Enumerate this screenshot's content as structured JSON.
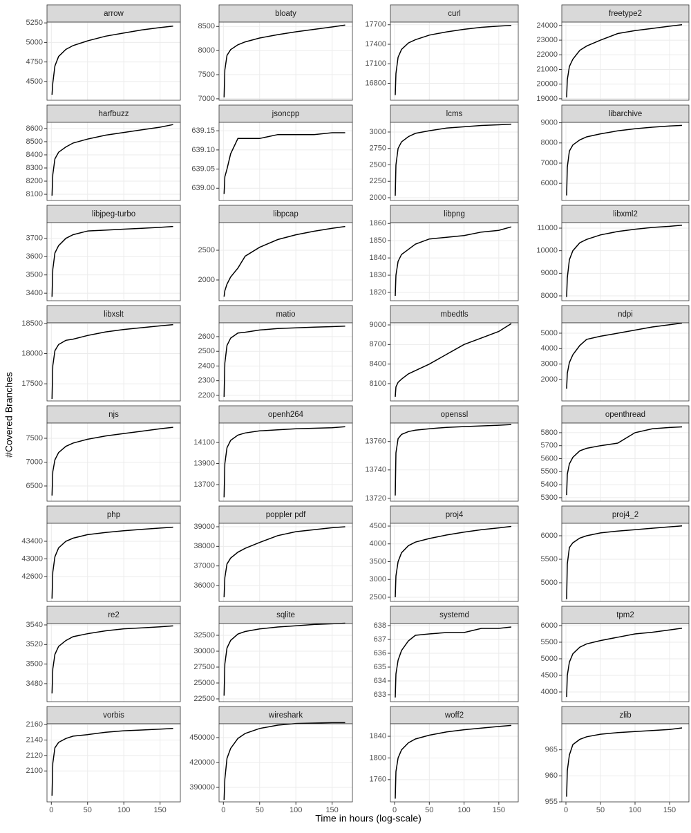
{
  "chart_data": {
    "type": "line",
    "x_label": "Time in hours (log-scale)",
    "y_label": "#Covered Branches",
    "xlim": [
      -6,
      178
    ],
    "xticks": [
      0,
      50,
      100,
      150
    ],
    "grid": true,
    "color": "#000000",
    "x": [
      1,
      2,
      5,
      10,
      20,
      30,
      50,
      75,
      100,
      125,
      150,
      168
    ],
    "panels": [
      {
        "title": "arrow",
        "ylim": [
          4260,
          5260
        ],
        "yticks": [
          4500,
          4750,
          5000,
          5250
        ],
        "values": [
          4330,
          4480,
          4700,
          4820,
          4910,
          4960,
          5020,
          5080,
          5120,
          5160,
          5190,
          5210
        ]
      },
      {
        "title": "bloaty",
        "ylim": [
          6970,
          8590
        ],
        "yticks": [
          7000,
          7500,
          8000,
          8500
        ],
        "values": [
          7030,
          7600,
          7900,
          8020,
          8120,
          8180,
          8260,
          8330,
          8390,
          8440,
          8490,
          8530
        ]
      },
      {
        "title": "curl",
        "ylim": [
          16540,
          17740
        ],
        "yticks": [
          16800,
          17100,
          17400,
          17700
        ],
        "values": [
          16620,
          16950,
          17200,
          17320,
          17420,
          17470,
          17540,
          17590,
          17630,
          17660,
          17680,
          17690
        ]
      },
      {
        "title": "freetype2",
        "ylim": [
          18900,
          24230
        ],
        "yticks": [
          19000,
          20000,
          21000,
          22000,
          23000,
          24000
        ],
        "values": [
          19100,
          20300,
          21200,
          21700,
          22300,
          22600,
          23000,
          23450,
          23650,
          23800,
          23950,
          24050
        ]
      },
      {
        "title": "harfbuzz",
        "ylim": [
          8053,
          8647
        ],
        "yticks": [
          8100,
          8200,
          8300,
          8400,
          8500,
          8600
        ],
        "values": [
          8090,
          8250,
          8370,
          8420,
          8460,
          8490,
          8520,
          8550,
          8570,
          8590,
          8610,
          8630
        ]
      },
      {
        "title": "jsoncpp",
        "ylim": [
          638.968,
          639.172
        ],
        "yticks": [
          {
            "value": 639,
            "label": "639.00"
          },
          639.05,
          {
            "value": 639.1,
            "label": "639.10"
          },
          639.15
        ],
        "values": [
          638.985,
          639.03,
          639.05,
          639.09,
          639.13,
          639.13,
          639.13,
          639.14,
          639.14,
          639.14,
          639.145,
          639.145
        ]
      },
      {
        "title": "lcms",
        "ylim": [
          1958,
          3147
        ],
        "yticks": [
          2000,
          2250,
          2500,
          2750,
          3000
        ],
        "values": [
          2030,
          2500,
          2750,
          2850,
          2930,
          2980,
          3020,
          3060,
          3080,
          3100,
          3110,
          3120
        ]
      },
      {
        "title": "libarchive",
        "ylim": [
          5150,
          9020
        ],
        "yticks": [
          6000,
          7000,
          8000,
          9000
        ],
        "values": [
          5400,
          6800,
          7600,
          7900,
          8150,
          8300,
          8450,
          8600,
          8700,
          8780,
          8840,
          8870
        ]
      },
      {
        "title": "libjpeg-turbo",
        "ylim": [
          3359,
          3786
        ],
        "yticks": [
          3400,
          3500,
          3600,
          3700
        ],
        "values": [
          3380,
          3530,
          3620,
          3660,
          3700,
          3720,
          3740,
          3745,
          3750,
          3755,
          3760,
          3765
        ]
      },
      {
        "title": "libpcap",
        "ylim": [
          1651,
          2965
        ],
        "yticks": [
          2000,
          2500
        ],
        "values": [
          1720,
          1820,
          1930,
          2050,
          2200,
          2400,
          2550,
          2680,
          2760,
          2820,
          2870,
          2900
        ]
      },
      {
        "title": "libpng",
        "ylim": [
          1815.2,
          1860.5
        ],
        "yticks": [
          1820,
          1830,
          1840,
          1850,
          1860
        ],
        "values": [
          1818,
          1830,
          1838,
          1842,
          1845,
          1848,
          1851,
          1852,
          1853,
          1855,
          1856,
          1858
        ]
      },
      {
        "title": "libxml2",
        "ylim": [
          7786,
          11245
        ],
        "yticks": [
          8000,
          9000,
          10000,
          11000
        ],
        "values": [
          7950,
          8800,
          9600,
          10000,
          10350,
          10500,
          10700,
          10850,
          10950,
          11030,
          11080,
          11130
        ]
      },
      {
        "title": "libxslt",
        "ylim": [
          17216,
          18510
        ],
        "yticks": [
          17500,
          18000,
          18500
        ],
        "values": [
          17250,
          17800,
          18050,
          18150,
          18220,
          18240,
          18300,
          18360,
          18400,
          18430,
          18460,
          18480
        ]
      },
      {
        "title": "matio",
        "ylim": [
          2162,
          2694
        ],
        "yticks": [
          2200,
          2300,
          2400,
          2500,
          2600
        ],
        "values": [
          2190,
          2420,
          2540,
          2590,
          2625,
          2630,
          2645,
          2655,
          2660,
          2665,
          2668,
          2672
        ]
      },
      {
        "title": "mbedtls",
        "ylim": [
          7835,
          9032
        ],
        "yticks": [
          8100,
          8400,
          8700,
          9000
        ],
        "values": [
          7900,
          8050,
          8120,
          8170,
          8250,
          8300,
          8400,
          8550,
          8700,
          8800,
          8900,
          9020
        ]
      },
      {
        "title": "ndpi",
        "ylim": [
          610,
          5670
        ],
        "yticks": [
          2000,
          3000,
          4000,
          5000
        ],
        "values": [
          1400,
          2400,
          3100,
          3600,
          4200,
          4600,
          4800,
          5000,
          5200,
          5400,
          5550,
          5650
        ]
      },
      {
        "title": "njs",
        "ylim": [
          6181,
          7819
        ],
        "yticks": [
          6500,
          7000,
          7500
        ],
        "values": [
          6300,
          6800,
          7050,
          7200,
          7330,
          7400,
          7480,
          7550,
          7600,
          7650,
          7700,
          7730
        ]
      },
      {
        "title": "openh264",
        "ylim": [
          13543,
          14284
        ],
        "yticks": [
          13700,
          13900,
          14100
        ],
        "values": [
          13580,
          13900,
          14050,
          14120,
          14170,
          14190,
          14210,
          14220,
          14230,
          14235,
          14240,
          14250
        ]
      },
      {
        "title": "openssl",
        "ylim": [
          13718,
          13773
        ],
        "yticks": [
          13720,
          13740,
          13760
        ],
        "values": [
          13722,
          13752,
          13762,
          13765,
          13767,
          13768,
          13769,
          13770,
          13770.5,
          13771,
          13771.5,
          13772
        ]
      },
      {
        "title": "openthread",
        "ylim": [
          5273,
          5874
        ],
        "yticks": [
          5300,
          5400,
          5500,
          5600,
          5700,
          5800
        ],
        "values": [
          5320,
          5480,
          5560,
          5610,
          5660,
          5680,
          5700,
          5720,
          5800,
          5830,
          5840,
          5845
        ]
      },
      {
        "title": "php",
        "ylim": [
          42035,
          43808
        ],
        "yticks": [
          42600,
          43000,
          43400
        ],
        "values": [
          42100,
          42700,
          43050,
          43250,
          43400,
          43470,
          43550,
          43600,
          43640,
          43670,
          43700,
          43720
        ]
      },
      {
        "title": "poppler pdf",
        "ylim": [
          35187,
          39177
        ],
        "yticks": [
          36000,
          37000,
          38000,
          39000
        ],
        "values": [
          35400,
          36400,
          37100,
          37400,
          37700,
          37900,
          38200,
          38550,
          38750,
          38850,
          38950,
          39000
        ]
      },
      {
        "title": "proj4",
        "ylim": [
          2383,
          4578
        ],
        "yticks": [
          2500,
          3000,
          3500,
          4000,
          4500
        ],
        "values": [
          2500,
          3100,
          3500,
          3750,
          3950,
          4050,
          4150,
          4250,
          4330,
          4400,
          4450,
          4490
        ]
      },
      {
        "title": "proj4_2",
        "ylim": [
          4603,
          6265
        ],
        "yticks": [
          5000,
          5500,
          6000
        ],
        "values": [
          4650,
          5400,
          5750,
          5850,
          5950,
          6000,
          6060,
          6100,
          6130,
          6160,
          6190,
          6210
        ]
      },
      {
        "title": "re2",
        "ylim": [
          3461.6,
          3541.4
        ],
        "yticks": [
          3480,
          3500,
          3520,
          3540
        ],
        "values": [
          3470,
          3495,
          3510,
          3518,
          3524,
          3528,
          3531,
          3534,
          3536,
          3537,
          3538,
          3539
        ]
      },
      {
        "title": "sqlite",
        "ylim": [
          22065,
          34348
        ],
        "yticks": [
          22500,
          25000,
          27500,
          30000,
          32500
        ],
        "values": [
          23000,
          28000,
          30500,
          31700,
          32700,
          33100,
          33500,
          33800,
          34000,
          34200,
          34300,
          34400
        ]
      },
      {
        "title": "systemd",
        "ylim": [
          632.5,
          638.15
        ],
        "yticks": [
          633,
          634,
          635,
          636,
          637,
          638
        ],
        "values": [
          632.8,
          634.5,
          635.5,
          636.2,
          636.9,
          637.3,
          637.4,
          637.5,
          637.5,
          637.8,
          637.8,
          637.9
        ]
      },
      {
        "title": "tpm2",
        "ylim": [
          3708,
          6062
        ],
        "yticks": [
          4000,
          4500,
          5000,
          5500,
          6000
        ],
        "values": [
          3850,
          4500,
          4900,
          5150,
          5350,
          5450,
          5550,
          5650,
          5750,
          5800,
          5870,
          5920
        ]
      },
      {
        "title": "vorbis",
        "ylim": [
          2060,
          2161
        ],
        "yticks": [
          2100,
          2120,
          2140,
          2160
        ],
        "values": [
          2068,
          2110,
          2130,
          2137,
          2142,
          2145,
          2147,
          2150,
          2152,
          2153,
          2154,
          2155
        ]
      },
      {
        "title": "wireshark",
        "ylim": [
          372500,
          466667
        ],
        "yticks": [
          390000,
          420000,
          450000
        ],
        "values": [
          375000,
          400000,
          425000,
          437000,
          449000,
          455000,
          461000,
          465000,
          467000,
          467500,
          468000,
          468000
        ]
      },
      {
        "title": "woff2",
        "ylim": [
          1719,
          1863
        ],
        "yticks": [
          1760,
          1800,
          1840
        ],
        "values": [
          1725,
          1775,
          1800,
          1815,
          1828,
          1835,
          1842,
          1848,
          1852,
          1855,
          1858,
          1860
        ]
      },
      {
        "title": "zlib",
        "ylim": [
          955,
          970
        ],
        "yticks": [
          955,
          960,
          965
        ],
        "values": [
          956,
          961,
          964,
          966,
          967,
          967.5,
          968,
          968.3,
          968.5,
          968.7,
          968.9,
          969.2
        ]
      }
    ]
  }
}
